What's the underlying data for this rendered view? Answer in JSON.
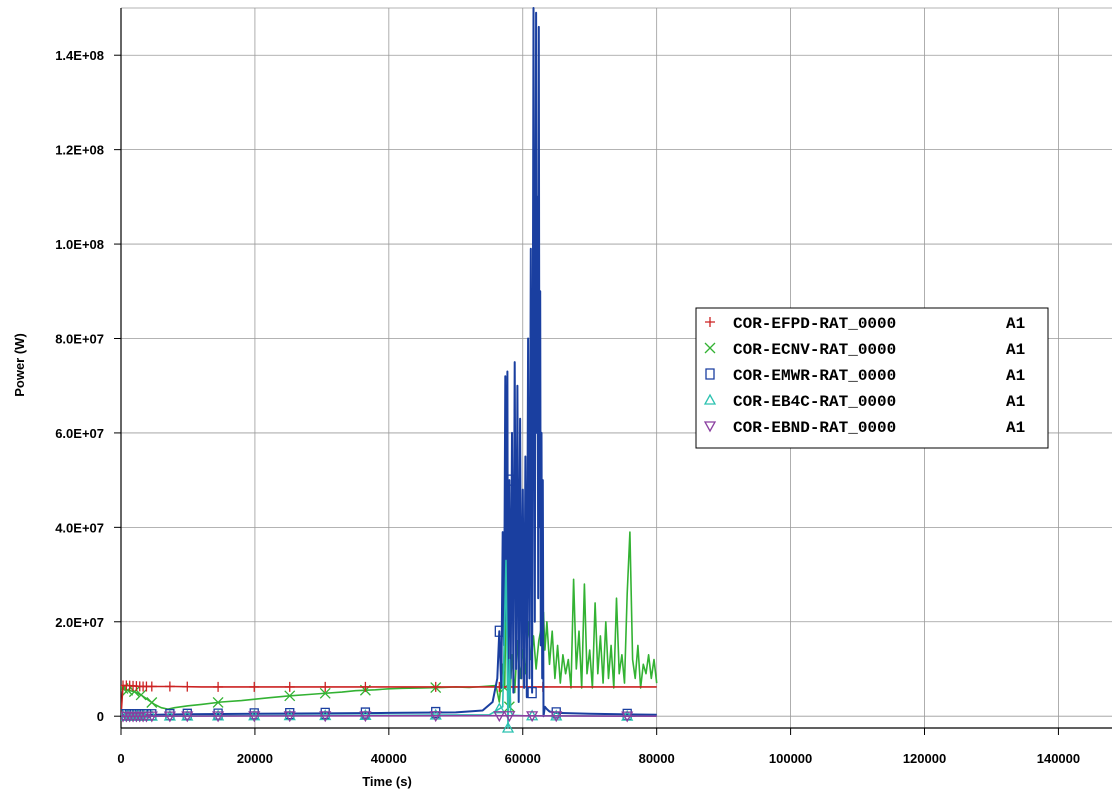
{
  "chart_data": {
    "type": "line",
    "title": "",
    "xlabel": "Time (s)",
    "ylabel": "Power  (W)",
    "xlim": [
      0,
      148000
    ],
    "ylim": [
      -2500000,
      150000000
    ],
    "grid": true,
    "legend_placement": "center-right",
    "x_ticks": [
      {
        "value": 0,
        "label": "0"
      },
      {
        "value": 20000,
        "label": "20000"
      },
      {
        "value": 40000,
        "label": "40000"
      },
      {
        "value": 60000,
        "label": "60000"
      },
      {
        "value": 80000,
        "label": "80000"
      },
      {
        "value": 100000,
        "label": "100000"
      },
      {
        "value": 120000,
        "label": "120000"
      },
      {
        "value": 140000,
        "label": "140000"
      }
    ],
    "y_ticks": [
      {
        "value": 0,
        "label": "0"
      },
      {
        "value": 20000000,
        "label": "2.0E+07"
      },
      {
        "value": 40000000,
        "label": "4.0E+07"
      },
      {
        "value": 60000000,
        "label": "6.0E+07"
      },
      {
        "value": 80000000,
        "label": "8.0E+07"
      },
      {
        "value": 100000000,
        "label": "1.0E+08"
      },
      {
        "value": 120000000,
        "label": "1.2E+08"
      },
      {
        "value": 140000000,
        "label": "1.4E+08"
      }
    ],
    "series": [
      {
        "name": "COR-EFPD-RAT_0000",
        "case": "A1",
        "color": "#cc2222",
        "marker": "plus",
        "x": [
          0,
          300,
          1000,
          2000,
          3000,
          4000,
          6000,
          8000,
          12000,
          20000,
          30000,
          40000,
          50000,
          56000,
          57000,
          58000,
          60000,
          63000,
          70000,
          80000
        ],
        "y": [
          0,
          6500000,
          6500000,
          6400000,
          6300000,
          6300000,
          6300000,
          6300000,
          6200000,
          6200000,
          6200000,
          6200000,
          6200000,
          6200000,
          6200000,
          6200000,
          6200000,
          6200000,
          6200000,
          6200000
        ],
        "marker_x": [
          300,
          800,
          1300,
          1800,
          2300,
          2800,
          3300,
          3800,
          4600,
          7300,
          9900,
          14500,
          19900,
          25200,
          30500,
          36500,
          47000,
          56500,
          58000,
          63000
        ]
      },
      {
        "name": "COR-ECNV-RAT_0000",
        "case": "A1",
        "color": "#33b233",
        "marker": "x",
        "x": [
          0,
          500,
          1000,
          2000,
          3000,
          4000,
          5000,
          6000,
          7000,
          8000,
          10000,
          12000,
          15000,
          18000,
          20000,
          22000,
          25000,
          28000,
          30000,
          33000,
          35000,
          38000,
          40000,
          42000,
          45000,
          48000,
          50000,
          52000,
          54000,
          56000,
          56500,
          57000,
          57300,
          57600,
          58000,
          58400,
          58800,
          59200,
          59600,
          60000,
          60400,
          60800,
          61200,
          61600,
          62000,
          62400,
          62800,
          63100,
          63300,
          63600,
          64000,
          64400,
          64800,
          65200,
          65600,
          66000,
          66400,
          66800,
          67200,
          67600,
          68000,
          68400,
          68800,
          69200,
          69600,
          70000,
          70400,
          70800,
          71200,
          71600,
          72000,
          72400,
          72800,
          73200,
          73600,
          74000,
          74400,
          74800,
          75200,
          75600,
          76000,
          76400,
          76800,
          77200,
          77600,
          78000,
          78400,
          78800,
          79200,
          79600,
          80000
        ],
        "y": [
          6000000,
          5800000,
          5500000,
          5200000,
          4500000,
          3500000,
          2500000,
          1800000,
          1500000,
          1800000,
          2200000,
          2500000,
          3000000,
          3300000,
          3600000,
          3900000,
          4300000,
          4600000,
          4800000,
          5100000,
          5400000,
          5600000,
          5800000,
          5900000,
          6000000,
          6100000,
          6200000,
          6100000,
          6300000,
          6500000,
          3000000,
          11000000,
          6000000,
          33000000,
          2000000,
          13000000,
          5000000,
          16000000,
          8000000,
          14000000,
          9000000,
          20000000,
          12000000,
          17000000,
          10000000,
          16000000,
          19000000,
          22000000,
          14000000,
          20000000,
          11000000,
          18000000,
          8000000,
          15000000,
          7000000,
          13000000,
          9000000,
          12000000,
          6000000,
          29000000,
          10000000,
          18000000,
          6000000,
          28000000,
          9000000,
          14000000,
          6000000,
          24000000,
          9000000,
          17000000,
          7000000,
          20000000,
          8000000,
          15000000,
          6000000,
          25000000,
          9000000,
          13000000,
          7000000,
          26000000,
          39000000,
          12000000,
          8000000,
          15000000,
          6000000,
          11000000,
          9000000,
          13000000,
          8000000,
          12000000,
          7000000
        ],
        "marker_x": [
          300,
          1000,
          2000,
          3000,
          4600,
          14500,
          25200,
          30500,
          36500,
          47000,
          57300,
          58000
        ]
      },
      {
        "name": "COR-EMWR-RAT_0000",
        "case": "A1",
        "color": "#1a3fa0",
        "marker": "square",
        "x": [
          0,
          1000,
          5000,
          10000,
          20000,
          30000,
          40000,
          50000,
          54000,
          55500,
          56200,
          56500,
          56800,
          57000,
          57200,
          57400,
          57600,
          57700,
          57800,
          58000,
          58200,
          58400,
          58600,
          58800,
          59000,
          59200,
          59400,
          59600,
          59800,
          60000,
          60200,
          60400,
          60600,
          60800,
          61000,
          61200,
          61400,
          61600,
          61800,
          62000,
          62100,
          62200,
          62300,
          62400,
          62500,
          62600,
          62700,
          62800,
          62900,
          63000,
          63100,
          63300,
          63600,
          64000,
          65000,
          70000,
          80000
        ],
        "y": [
          300000,
          300000,
          300000,
          400000,
          500000,
          600000,
          700000,
          800000,
          1200000,
          3000000,
          8000000,
          18000000,
          6000000,
          39000000,
          15000000,
          72000000,
          20000000,
          73000000,
          3000000,
          50000000,
          8000000,
          60000000,
          5000000,
          75000000,
          10000000,
          70000000,
          3000000,
          63000000,
          8000000,
          48000000,
          6000000,
          55000000,
          4000000,
          80000000,
          8000000,
          99000000,
          5000000,
          150000000,
          20000000,
          149000000,
          60000000,
          110000000,
          25000000,
          146000000,
          40000000,
          90000000,
          15000000,
          60000000,
          8000000,
          50000000,
          0,
          2000000,
          1500000,
          1000000,
          700000,
          500000,
          300000
        ],
        "marker_x": [
          300,
          800,
          1300,
          1800,
          2300,
          2800,
          3300,
          3800,
          4600,
          7300,
          9900,
          14500,
          19900,
          25200,
          30500,
          36500,
          47000,
          56500,
          58000,
          61400,
          65000,
          75600
        ]
      },
      {
        "name": "COR-EB4C-RAT_0000",
        "case": "A1",
        "color": "#2cc2b0",
        "marker": "triangle-up",
        "x": [
          0,
          20000,
          40000,
          55000,
          57000,
          57500,
          57800,
          58000,
          58200,
          58500,
          60000,
          80000
        ],
        "y": [
          0,
          100000,
          200000,
          300000,
          2000000,
          33000000,
          -2500000,
          12000000,
          1000000,
          200000,
          100000,
          0
        ],
        "marker_x": [
          300,
          800,
          1300,
          1800,
          2300,
          2800,
          3300,
          3800,
          4600,
          7300,
          9900,
          14500,
          19900,
          25200,
          30500,
          36500,
          47000,
          56500,
          57800,
          61400,
          65000,
          75600
        ]
      },
      {
        "name": "COR-EBND-RAT_0000",
        "case": "A1",
        "color": "#8a3fa0",
        "marker": "triangle-down",
        "x": [
          0,
          20000,
          40000,
          56000,
          60000,
          80000
        ],
        "y": [
          0,
          50000,
          80000,
          100000,
          80000,
          0
        ],
        "marker_x": [
          300,
          800,
          1300,
          1800,
          2300,
          2800,
          3300,
          3800,
          4600,
          7300,
          9900,
          14500,
          19900,
          25200,
          30500,
          36500,
          47000,
          56500,
          58000,
          61400,
          65000,
          75600
        ]
      }
    ]
  }
}
